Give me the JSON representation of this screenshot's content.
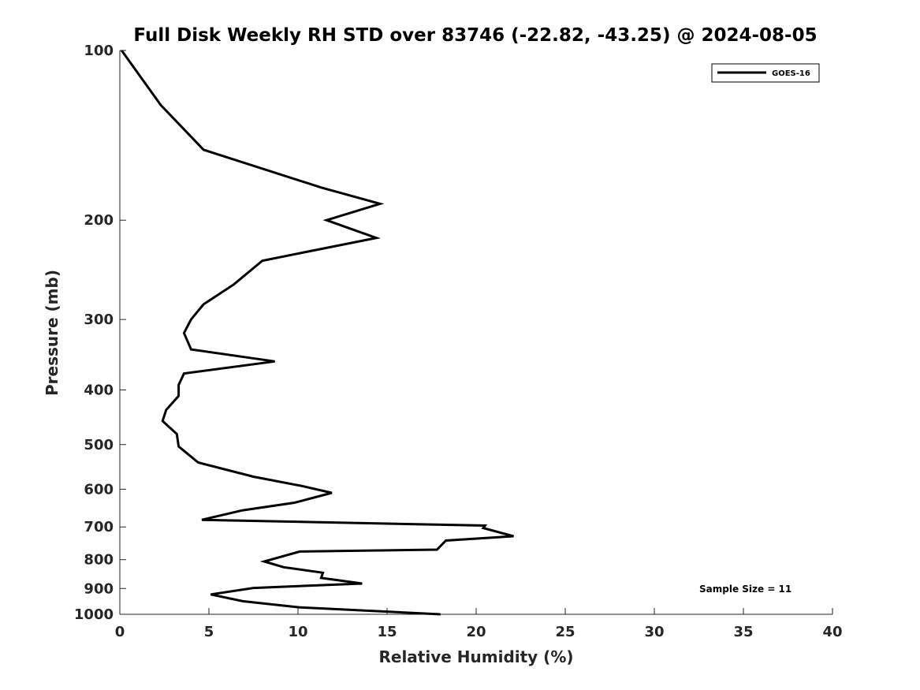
{
  "chart_data": {
    "type": "line",
    "title": "Full Disk Weekly RH STD over 83746 (-22.82, -43.25) @ 2024-08-05",
    "xlabel": "Relative Humidity (%)",
    "ylabel": "Pressure (mb)",
    "xlim": [
      0,
      40
    ],
    "ylim": [
      100,
      1000
    ],
    "y_scale": "log",
    "y_reversed": true,
    "grid": false,
    "legend_position": "top-right",
    "x_ticks": [
      0,
      5,
      10,
      15,
      20,
      25,
      30,
      35,
      40
    ],
    "x_tick_labels": [
      "0",
      "5",
      "10",
      "15",
      "20",
      "25",
      "30",
      "35",
      "40"
    ],
    "y_ticks": [
      100,
      200,
      300,
      400,
      500,
      600,
      700,
      800,
      900,
      1000
    ],
    "y_tick_labels": [
      "100",
      "200",
      "300",
      "400",
      "500",
      "600",
      "700",
      "800",
      "900",
      "1000"
    ],
    "series": [
      {
        "name": "GOES-16",
        "color": "#000000",
        "points": [
          [
            0.1,
            100
          ],
          [
            2.3,
            125
          ],
          [
            4.7,
            150
          ],
          [
            11.3,
            175
          ],
          [
            14.6,
            187
          ],
          [
            11.6,
            200
          ],
          [
            14.4,
            215
          ],
          [
            8.0,
            236
          ],
          [
            6.4,
            260
          ],
          [
            4.7,
            282
          ],
          [
            4.0,
            300
          ],
          [
            3.6,
            317
          ],
          [
            4.0,
            339
          ],
          [
            8.7,
            356
          ],
          [
            3.6,
            374
          ],
          [
            3.3,
            392
          ],
          [
            3.3,
            410
          ],
          [
            2.6,
            434
          ],
          [
            2.4,
            454
          ],
          [
            3.2,
            479
          ],
          [
            3.3,
            504
          ],
          [
            4.4,
            538
          ],
          [
            7.5,
            570
          ],
          [
            10.2,
            592
          ],
          [
            11.9,
            609
          ],
          [
            9.8,
            634
          ],
          [
            6.9,
            654
          ],
          [
            4.6,
            680
          ],
          [
            20.5,
            696
          ],
          [
            20.4,
            703
          ],
          [
            22.1,
            727
          ],
          [
            18.3,
            740
          ],
          [
            17.8,
            768
          ],
          [
            10.1,
            774
          ],
          [
            8.1,
            806
          ],
          [
            9.2,
            825
          ],
          [
            11.4,
            844
          ],
          [
            11.3,
            862
          ],
          [
            13.6,
            882
          ],
          [
            7.5,
            898
          ],
          [
            5.1,
            922
          ],
          [
            6.9,
            948
          ],
          [
            10.1,
            972
          ],
          [
            18.0,
            1000
          ]
        ]
      }
    ],
    "annotations": [
      {
        "text": "Sample Size = 11",
        "x": 34.4,
        "y": 900
      }
    ]
  }
}
